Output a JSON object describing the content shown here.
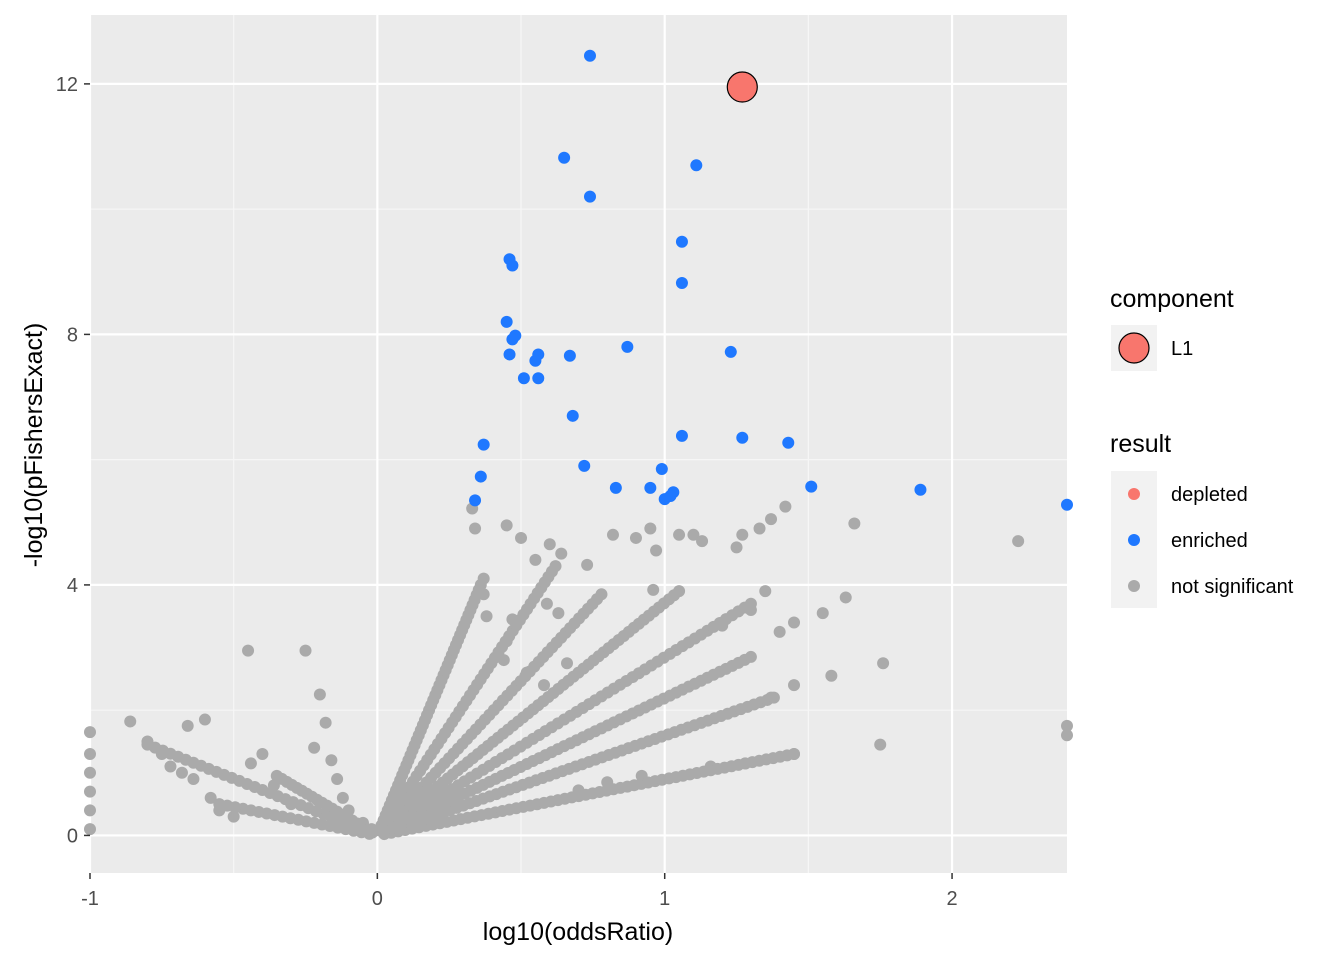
{
  "chart_data": {
    "type": "scatter",
    "xlabel": "log10(oddsRatio)",
    "ylabel": "-log10(pFishersExact)",
    "xlim": [
      -1.0,
      2.4
    ],
    "ylim": [
      -0.6,
      13.1
    ],
    "x_ticks": [
      -1,
      0,
      1,
      2
    ],
    "x_tick_labels": [
      "-1",
      "0",
      "1",
      "2"
    ],
    "y_ticks": [
      0,
      4,
      8,
      12
    ],
    "y_tick_labels": [
      "0",
      "4",
      "8",
      "12"
    ],
    "grid": true,
    "legend_position": "right",
    "legends": [
      {
        "title": "component",
        "entries": [
          {
            "label": "L1",
            "color": "#F8766D",
            "outline": "#000000"
          }
        ]
      },
      {
        "title": "result",
        "entries": [
          {
            "label": "depleted",
            "color": "#F8766D"
          },
          {
            "label": "enriched",
            "color": "#1F78FF"
          },
          {
            "label": "not significant",
            "color": "#AAAAAA"
          }
        ]
      }
    ],
    "series": [
      {
        "name": "L1",
        "color": "#F8766D",
        "points": [
          [
            1.27,
            11.95
          ]
        ]
      },
      {
        "name": "enriched",
        "color": "#1F78FF",
        "points": [
          [
            0.74,
            12.45
          ],
          [
            0.65,
            10.82
          ],
          [
            1.11,
            10.7
          ],
          [
            0.74,
            10.2
          ],
          [
            1.06,
            9.48
          ],
          [
            0.46,
            9.2
          ],
          [
            0.47,
            9.1
          ],
          [
            1.06,
            8.82
          ],
          [
            0.45,
            8.2
          ],
          [
            0.48,
            7.98
          ],
          [
            0.47,
            7.92
          ],
          [
            0.87,
            7.8
          ],
          [
            1.23,
            7.72
          ],
          [
            0.56,
            7.68
          ],
          [
            0.46,
            7.68
          ],
          [
            0.67,
            7.66
          ],
          [
            0.55,
            7.58
          ],
          [
            0.51,
            7.3
          ],
          [
            0.56,
            7.3
          ],
          [
            0.68,
            6.7
          ],
          [
            1.06,
            6.38
          ],
          [
            1.27,
            6.35
          ],
          [
            1.43,
            6.27
          ],
          [
            0.37,
            6.24
          ],
          [
            0.72,
            5.9
          ],
          [
            0.99,
            5.85
          ],
          [
            0.36,
            5.73
          ],
          [
            0.83,
            5.55
          ],
          [
            0.95,
            5.55
          ],
          [
            1.51,
            5.57
          ],
          [
            1.89,
            5.52
          ],
          [
            1.03,
            5.48
          ],
          [
            1.02,
            5.42
          ],
          [
            1.0,
            5.37
          ],
          [
            0.34,
            5.35
          ],
          [
            2.4,
            5.28
          ]
        ]
      },
      {
        "name": "not significant",
        "color": "#AAAAAA",
        "points": [
          [
            -1.0,
            1.65
          ],
          [
            -1.0,
            1.3
          ],
          [
            -1.0,
            1.0
          ],
          [
            -1.0,
            0.7
          ],
          [
            -1.0,
            0.4
          ],
          [
            -1.0,
            0.1
          ],
          [
            -0.86,
            1.82
          ],
          [
            -0.8,
            1.5
          ],
          [
            -0.75,
            1.3
          ],
          [
            -0.72,
            1.1
          ],
          [
            -0.68,
            1.0
          ],
          [
            -0.66,
            1.75
          ],
          [
            -0.64,
            0.9
          ],
          [
            -0.6,
            1.85
          ],
          [
            -0.58,
            0.6
          ],
          [
            -0.55,
            0.4
          ],
          [
            -0.5,
            0.3
          ],
          [
            -0.45,
            2.95
          ],
          [
            -0.44,
            1.15
          ],
          [
            -0.4,
            1.3
          ],
          [
            -0.36,
            0.8
          ],
          [
            -0.3,
            0.5
          ],
          [
            -0.25,
            2.95
          ],
          [
            -0.22,
            1.4
          ],
          [
            -0.2,
            2.25
          ],
          [
            -0.18,
            1.8
          ],
          [
            -0.16,
            1.2
          ],
          [
            -0.14,
            0.9
          ],
          [
            -0.12,
            0.6
          ],
          [
            -0.1,
            0.4
          ],
          [
            -0.05,
            0.2
          ],
          [
            -0.02,
            0.1
          ],
          [
            0.33,
            5.22
          ],
          [
            0.34,
            4.9
          ],
          [
            0.37,
            4.1
          ],
          [
            0.37,
            3.85
          ],
          [
            0.38,
            3.5
          ],
          [
            0.45,
            4.95
          ],
          [
            0.47,
            3.45
          ],
          [
            0.5,
            4.75
          ],
          [
            0.55,
            4.4
          ],
          [
            0.6,
            4.65
          ],
          [
            0.64,
            4.5
          ],
          [
            0.59,
            3.7
          ],
          [
            0.63,
            3.55
          ],
          [
            0.45,
            3.1
          ],
          [
            0.44,
            2.8
          ],
          [
            0.52,
            2.6
          ],
          [
            0.58,
            2.4
          ],
          [
            0.66,
            2.75
          ],
          [
            0.73,
            4.32
          ],
          [
            0.82,
            4.8
          ],
          [
            0.9,
            4.75
          ],
          [
            0.95,
            4.9
          ],
          [
            0.97,
            4.55
          ],
          [
            1.05,
            4.8
          ],
          [
            1.1,
            4.8
          ],
          [
            1.13,
            4.7
          ],
          [
            1.25,
            4.6
          ],
          [
            1.27,
            4.8
          ],
          [
            1.33,
            4.9
          ],
          [
            1.37,
            5.05
          ],
          [
            1.42,
            5.25
          ],
          [
            1.66,
            4.98
          ],
          [
            2.23,
            4.7
          ],
          [
            0.96,
            3.92
          ],
          [
            1.35,
            3.9
          ],
          [
            1.45,
            3.4
          ],
          [
            1.55,
            3.55
          ],
          [
            1.63,
            3.8
          ],
          [
            1.3,
            3.6
          ],
          [
            1.2,
            3.35
          ],
          [
            1.4,
            3.25
          ],
          [
            1.76,
            2.75
          ],
          [
            1.58,
            2.55
          ],
          [
            1.45,
            2.4
          ],
          [
            1.37,
            2.2
          ],
          [
            1.75,
            1.45
          ],
          [
            1.45,
            1.3
          ],
          [
            1.28,
            1.15
          ],
          [
            1.16,
            1.1
          ],
          [
            2.4,
            1.75
          ],
          [
            2.4,
            1.6
          ],
          [
            0.92,
            0.95
          ],
          [
            0.8,
            0.85
          ],
          [
            0.7,
            0.72
          ]
        ],
        "lines": [
          {
            "from": [
              0.0,
              0.0
            ],
            "to": [
              1.45,
              1.3
            ],
            "n": 60
          },
          {
            "from": [
              0.0,
              0.0
            ],
            "to": [
              1.38,
              2.2
            ],
            "n": 60
          },
          {
            "from": [
              0.0,
              0.0
            ],
            "to": [
              1.3,
              2.85
            ],
            "n": 60
          },
          {
            "from": [
              0.0,
              0.0
            ],
            "to": [
              1.3,
              3.7
            ],
            "n": 60
          },
          {
            "from": [
              0.0,
              0.0
            ],
            "to": [
              1.05,
              3.9
            ],
            "n": 60
          },
          {
            "from": [
              0.0,
              0.0
            ],
            "to": [
              0.78,
              3.85
            ],
            "n": 50
          },
          {
            "from": [
              0.0,
              0.0
            ],
            "to": [
              0.62,
              4.3
            ],
            "n": 50
          },
          {
            "from": [
              0.0,
              0.0
            ],
            "to": [
              0.36,
              4.0
            ],
            "n": 50
          },
          {
            "from": [
              0.0,
              0.0
            ],
            "to": [
              -0.35,
              0.95
            ],
            "n": 20
          },
          {
            "from": [
              0.0,
              0.0
            ],
            "to": [
              -0.55,
              0.5
            ],
            "n": 20
          },
          {
            "from": [
              0.0,
              0.0
            ],
            "to": [
              -0.8,
              1.45
            ],
            "n": 30
          }
        ]
      }
    ]
  }
}
